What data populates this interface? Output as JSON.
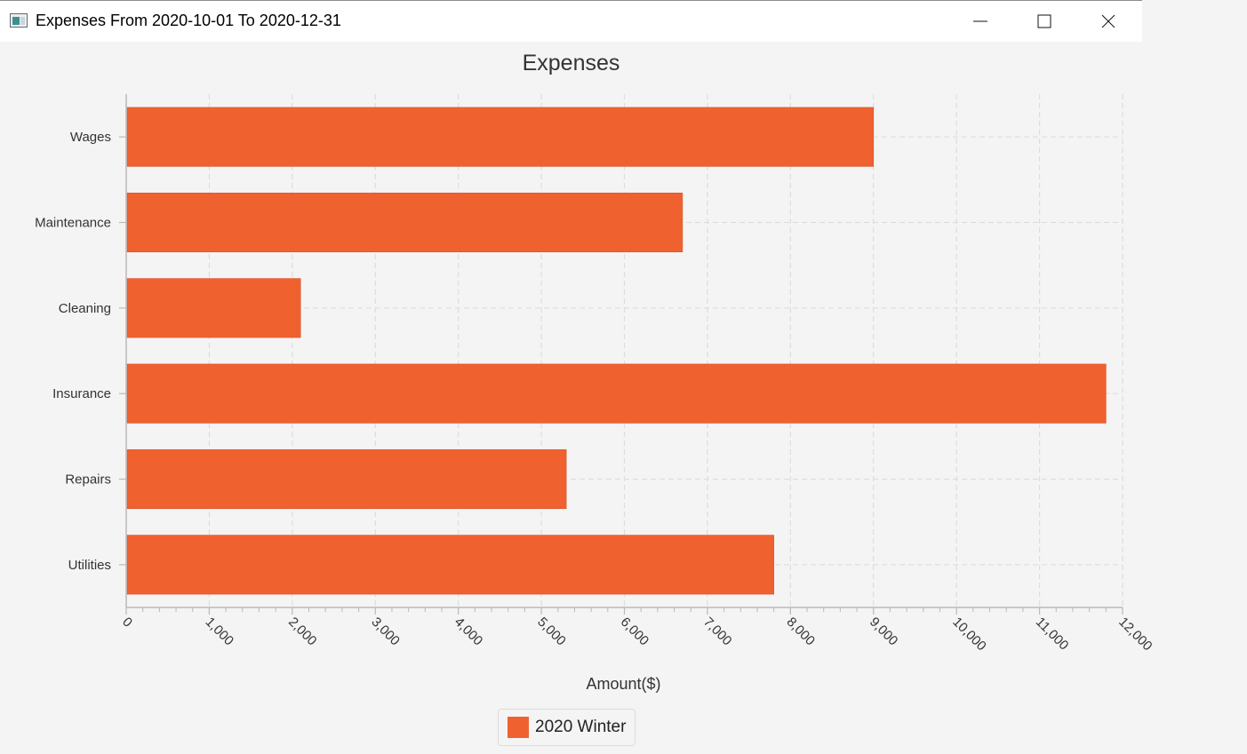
{
  "window": {
    "title": "Expenses From 2020-10-01 To 2020-12-31"
  },
  "colors": {
    "bar": "#f06130",
    "background": "#f4f4f4",
    "grid": "#dddddd"
  },
  "chart_data": {
    "type": "bar",
    "orientation": "horizontal",
    "title": "Expenses",
    "xlabel": "Amount($)",
    "ylabel": "",
    "categories": [
      "Wages",
      "Maintenance",
      "Cleaning",
      "Insurance",
      "Repairs",
      "Utilities"
    ],
    "series": [
      {
        "name": "2020 Winter",
        "values": [
          9000,
          6700,
          2100,
          11800,
          5300,
          7800
        ]
      }
    ],
    "xlim": [
      0,
      12000
    ],
    "xticks": [
      "0",
      "1,000",
      "2,000",
      "3,000",
      "4,000",
      "5,000",
      "6,000",
      "7,000",
      "8,000",
      "9,000",
      "10,000",
      "11,000",
      "12,000"
    ],
    "grid": true,
    "legend_position": "bottom"
  }
}
